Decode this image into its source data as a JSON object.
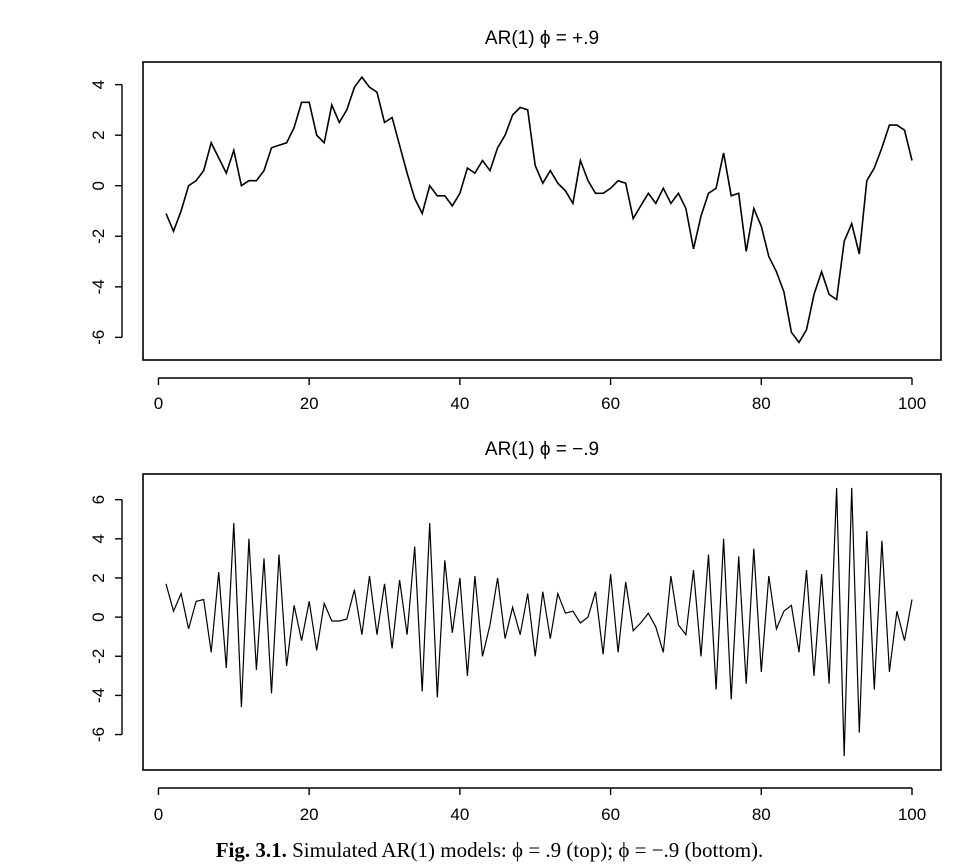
{
  "chart_data": [
    {
      "type": "line",
      "title": "AR(1)  ϕ = +.9",
      "xlabel": "",
      "ylabel": "",
      "xlim": [
        1,
        100
      ],
      "ylim": [
        -6.5,
        4.5
      ],
      "xticks": [
        0,
        20,
        40,
        60,
        80,
        100
      ],
      "yticks": [
        -6,
        -4,
        -2,
        0,
        2,
        4
      ],
      "x": [
        1,
        2,
        3,
        4,
        5,
        6,
        7,
        8,
        9,
        10,
        11,
        12,
        13,
        14,
        15,
        16,
        17,
        18,
        19,
        20,
        21,
        22,
        23,
        24,
        25,
        26,
        27,
        28,
        29,
        30,
        31,
        32,
        33,
        34,
        35,
        36,
        37,
        38,
        39,
        40,
        41,
        42,
        43,
        44,
        45,
        46,
        47,
        48,
        49,
        50,
        51,
        52,
        53,
        54,
        55,
        56,
        57,
        58,
        59,
        60,
        61,
        62,
        63,
        64,
        65,
        66,
        67,
        68,
        69,
        70,
        71,
        72,
        73,
        74,
        75,
        76,
        77,
        78,
        79,
        80,
        81,
        82,
        83,
        84,
        85,
        86,
        87,
        88,
        89,
        90,
        91,
        92,
        93,
        94,
        95,
        96,
        97,
        98,
        99,
        100
      ],
      "series": [
        {
          "values": [
            -1.1,
            -1.8,
            -1.0,
            0.0,
            0.2,
            0.6,
            1.7,
            1.1,
            0.5,
            1.4,
            0.0,
            0.2,
            0.2,
            0.6,
            1.5,
            1.6,
            1.7,
            2.3,
            3.3,
            3.3,
            2.0,
            1.7,
            3.2,
            2.5,
            3.0,
            3.9,
            4.3,
            3.9,
            3.7,
            2.5,
            2.7,
            1.6,
            0.5,
            -0.5,
            -1.1,
            0.0,
            -0.4,
            -0.4,
            -0.8,
            -0.3,
            0.7,
            0.5,
            1.0,
            0.6,
            1.5,
            2.0,
            2.8,
            3.1,
            3.0,
            0.8,
            0.1,
            0.6,
            0.1,
            -0.2,
            -0.7,
            1.0,
            0.2,
            -0.3,
            -0.3,
            -0.1,
            0.2,
            0.1,
            -1.3,
            -0.8,
            -0.3,
            -0.7,
            -0.1,
            -0.7,
            -0.3,
            -0.9,
            -2.5,
            -1.2,
            -0.3,
            -0.1,
            1.3,
            -0.4,
            -0.3,
            -2.6,
            -0.9,
            -1.6,
            -2.8,
            -3.4,
            -4.2,
            -5.8,
            -6.2,
            -5.7,
            -4.3,
            -3.4,
            -4.3,
            -4.5,
            -2.2,
            -1.5,
            -2.7,
            0.2,
            0.7,
            1.5,
            2.4,
            2.4,
            2.2,
            1.0
          ]
        }
      ]
    },
    {
      "type": "line",
      "title": "AR(1)  ϕ = −.9",
      "xlabel": "",
      "ylabel": "",
      "xlim": [
        1,
        100
      ],
      "ylim": [
        -7.3,
        6.8
      ],
      "xticks": [
        0,
        20,
        40,
        60,
        80,
        100
      ],
      "yticks": [
        -6,
        -4,
        -2,
        0,
        2,
        4,
        6
      ],
      "x": [
        1,
        2,
        3,
        4,
        5,
        6,
        7,
        8,
        9,
        10,
        11,
        12,
        13,
        14,
        15,
        16,
        17,
        18,
        19,
        20,
        21,
        22,
        23,
        24,
        25,
        26,
        27,
        28,
        29,
        30,
        31,
        32,
        33,
        34,
        35,
        36,
        37,
        38,
        39,
        40,
        41,
        42,
        43,
        44,
        45,
        46,
        47,
        48,
        49,
        50,
        51,
        52,
        53,
        54,
        55,
        56,
        57,
        58,
        59,
        60,
        61,
        62,
        63,
        64,
        65,
        66,
        67,
        68,
        69,
        70,
        71,
        72,
        73,
        74,
        75,
        76,
        77,
        78,
        79,
        80,
        81,
        82,
        83,
        84,
        85,
        86,
        87,
        88,
        89,
        90,
        91,
        92,
        93,
        94,
        95,
        96,
        97,
        98,
        99,
        100
      ],
      "series": [
        {
          "values": [
            1.7,
            0.3,
            1.2,
            -0.6,
            0.8,
            0.9,
            -1.8,
            2.3,
            -2.6,
            4.8,
            -4.6,
            4.0,
            -2.7,
            3.0,
            -3.9,
            3.2,
            -2.5,
            0.6,
            -1.2,
            0.8,
            -1.7,
            0.7,
            -0.2,
            -0.2,
            -0.1,
            1.4,
            -0.9,
            2.1,
            -0.9,
            1.7,
            -1.6,
            1.9,
            -0.9,
            3.6,
            -3.8,
            4.8,
            -4.1,
            2.9,
            -0.8,
            2.0,
            -3.0,
            2.1,
            -2.0,
            -0.4,
            2.0,
            -1.1,
            0.5,
            -0.9,
            1.2,
            -2.0,
            1.3,
            -1.1,
            1.2,
            0.2,
            0.3,
            -0.3,
            0.0,
            1.3,
            -1.9,
            2.2,
            -1.8,
            1.8,
            -0.7,
            -0.3,
            0.2,
            -0.5,
            -1.8,
            2.1,
            -0.4,
            -0.9,
            2.4,
            -2.0,
            3.2,
            -3.7,
            4.0,
            -4.2,
            3.1,
            -3.4,
            3.5,
            -2.8,
            2.1,
            -0.6,
            0.3,
            0.6,
            -1.8,
            2.4,
            -3.0,
            2.2,
            -3.4,
            6.6,
            -7.1,
            6.6,
            -5.9,
            4.4,
            -3.7,
            3.9,
            -2.8,
            0.3,
            -1.2,
            0.9
          ]
        }
      ]
    }
  ],
  "caption": {
    "label": "Fig. 3.1.",
    "text": " Simulated AR(1) models: ϕ = .9 (top);  ϕ = −.9 (bottom)."
  }
}
